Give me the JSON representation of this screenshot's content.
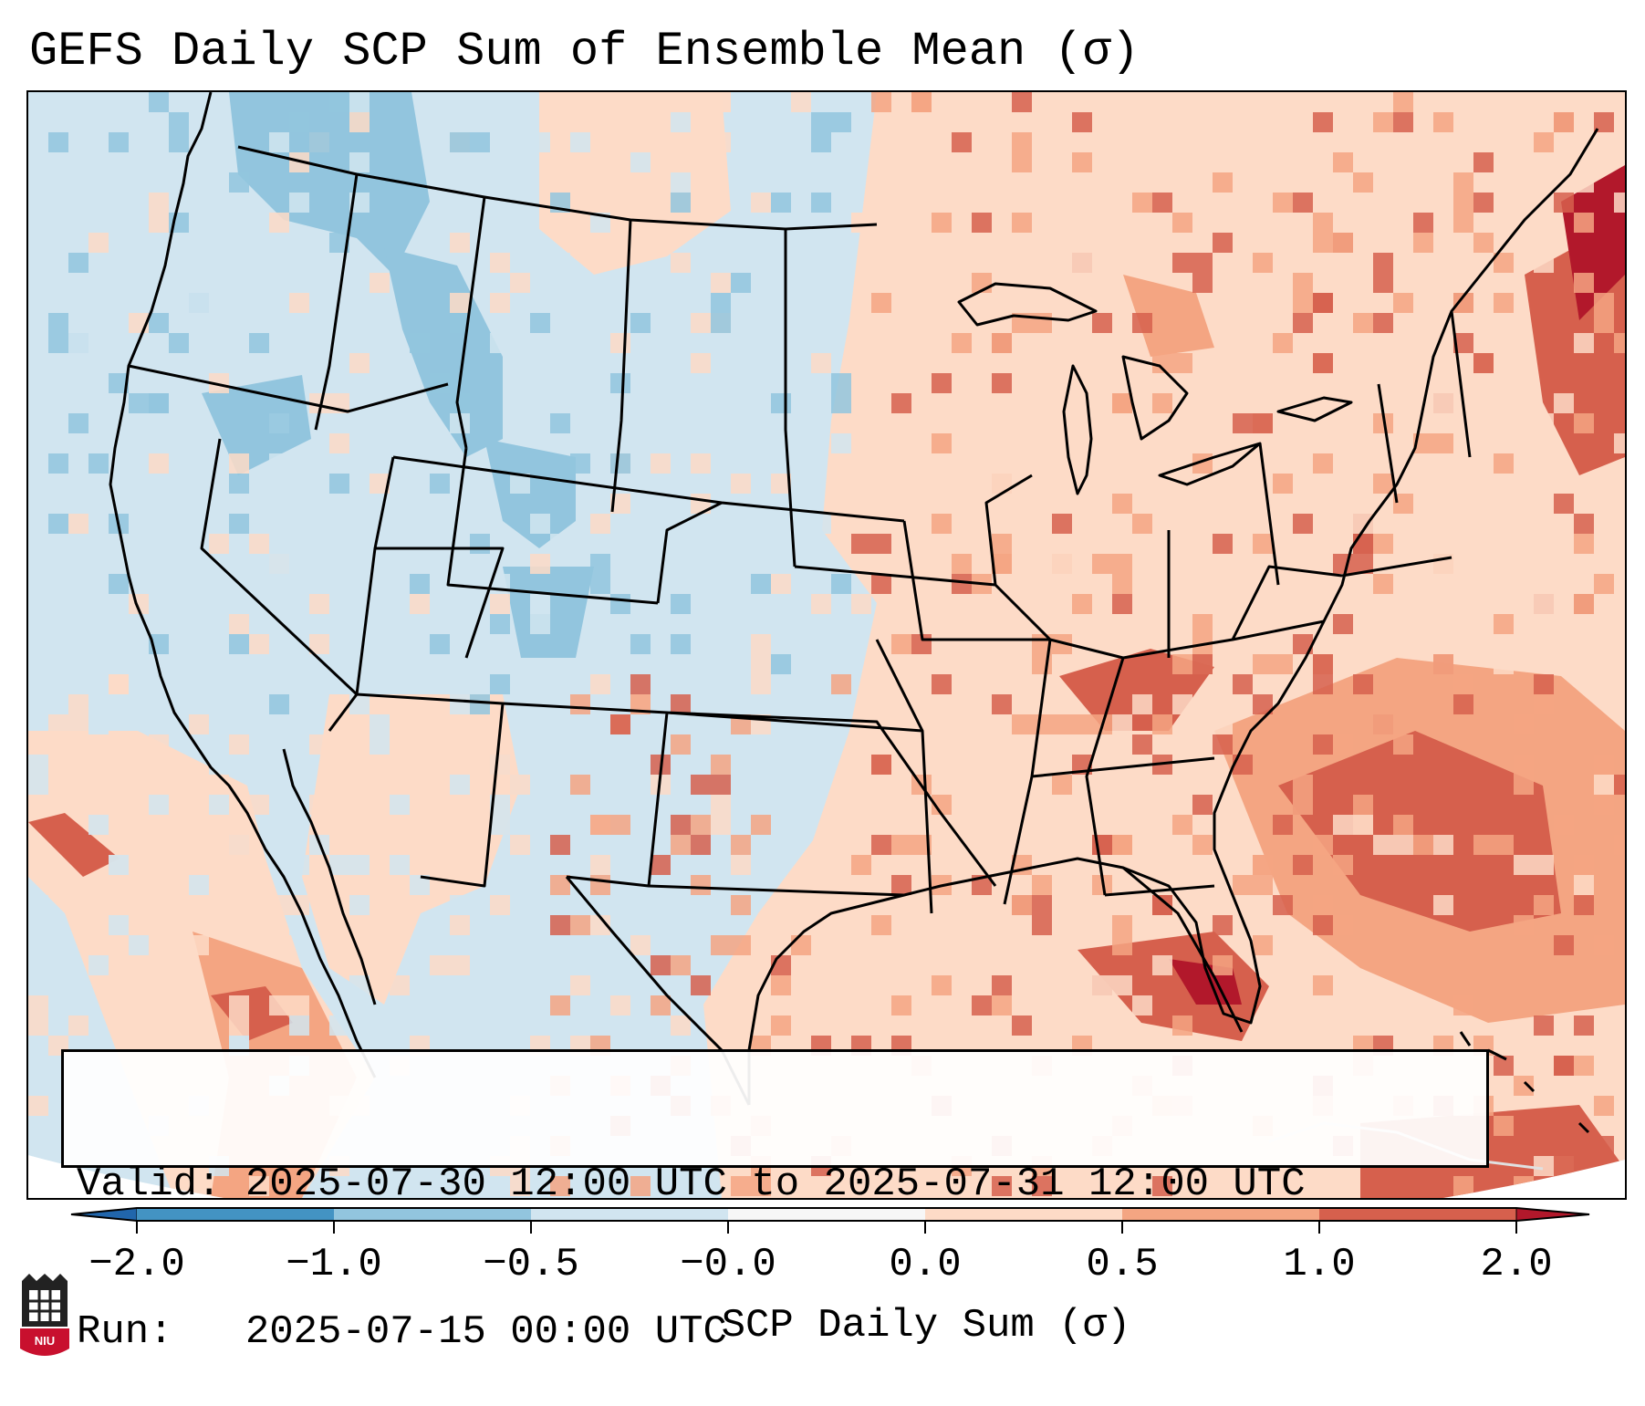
{
  "title": "GEFS Daily SCP Sum of Ensemble Mean (σ)",
  "info": {
    "valid_line": "Valid: 2025-07-30 12:00 UTC to 2025-07-31 12:00 UTC",
    "run_line": "Run:   2025-07-15 00:00 UTC"
  },
  "colorbar": {
    "label": "SCP Daily Sum (σ)",
    "ticks": [
      "−2.0",
      "−1.0",
      "−0.5",
      "−0.0",
      "0.0",
      "0.5",
      "1.0",
      "2.0"
    ],
    "bins": [
      {
        "range": "< -2.0",
        "color": "#2166ac"
      },
      {
        "range": "-2.0 to -1.0",
        "color": "#4393c3"
      },
      {
        "range": "-1.0 to -0.5",
        "color": "#92c5de"
      },
      {
        "range": "-0.5 to -0.0",
        "color": "#d1e5f0"
      },
      {
        "range": "-0.0 to 0.0",
        "color": "#f7f7f7"
      },
      {
        "range": "0.0 to 0.5",
        "color": "#fddbc7"
      },
      {
        "range": "0.5 to 1.0",
        "color": "#f4a582"
      },
      {
        "range": "1.0 to 2.0",
        "color": "#d6604d"
      },
      {
        "range": "> 2.0",
        "color": "#b2182b"
      }
    ]
  },
  "map": {
    "field": "SCP daily sum anomaly (σ)",
    "region": "Contiguous United States, northern Mexico, western Atlantic",
    "colors": {
      "background": "#d1e5f0",
      "outside": "#ffffff",
      "borders": "#000000"
    }
  },
  "logo": {
    "text": "NIU",
    "color": "#c8102e"
  }
}
